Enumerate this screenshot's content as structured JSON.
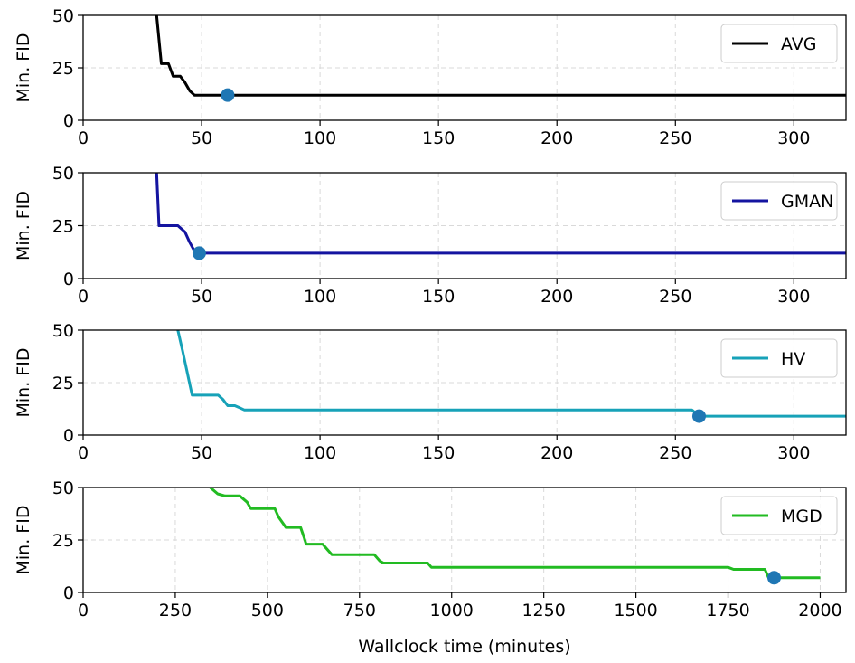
{
  "chart_data": [
    {
      "type": "line",
      "ylabel": "Min. FID",
      "xlim": [
        0,
        322
      ],
      "ylim": [
        0,
        50
      ],
      "xticks": [
        "0",
        "50",
        "100",
        "150",
        "200",
        "250",
        "300"
      ],
      "yticks": [
        "0",
        "25",
        "50"
      ],
      "grid": true,
      "legend_position": "top-right",
      "series": [
        {
          "name": "AVG",
          "color": "#000000",
          "x": [
            31,
            33,
            36,
            38,
            41,
            43,
            45,
            47,
            49,
            55,
            62,
            100,
            200,
            300,
            322
          ],
          "y": [
            50,
            27,
            27,
            21,
            21,
            18,
            14,
            12,
            12,
            12,
            12,
            12,
            12,
            12,
            12
          ]
        }
      ],
      "highlight_point": {
        "x": 61,
        "y": 12,
        "color": "#1f77b4"
      }
    },
    {
      "type": "line",
      "ylabel": "Min. FID",
      "xlim": [
        0,
        322
      ],
      "ylim": [
        0,
        50
      ],
      "xticks": [
        "0",
        "50",
        "100",
        "150",
        "200",
        "250",
        "300"
      ],
      "yticks": [
        "0",
        "25",
        "50"
      ],
      "grid": true,
      "legend_position": "top-right",
      "series": [
        {
          "name": "GMAN",
          "color": "#1414a0",
          "x": [
            31,
            32,
            35,
            40,
            43,
            45,
            47,
            49,
            55,
            100,
            200,
            300,
            322
          ],
          "y": [
            50,
            25,
            25,
            25,
            22,
            17,
            13,
            12,
            12,
            12,
            12,
            12,
            12
          ]
        }
      ],
      "highlight_point": {
        "x": 49,
        "y": 12,
        "color": "#1f77b4"
      }
    },
    {
      "type": "line",
      "ylabel": "Min. FID",
      "xlim": [
        0,
        322
      ],
      "ylim": [
        0,
        50
      ],
      "xticks": [
        "0",
        "50",
        "100",
        "150",
        "200",
        "250",
        "300"
      ],
      "yticks": [
        "0",
        "25",
        "50"
      ],
      "grid": true,
      "legend_position": "top-right",
      "series": [
        {
          "name": "HV",
          "color": "#17a2b8",
          "x": [
            40,
            42,
            46,
            50,
            57,
            59,
            61,
            64,
            66,
            68,
            100,
            200,
            257,
            259,
            261,
            300,
            322
          ],
          "y": [
            50,
            40,
            19,
            19,
            19,
            17,
            14,
            14,
            13,
            12,
            12,
            12,
            12,
            10,
            9,
            9,
            9
          ]
        }
      ],
      "highlight_point": {
        "x": 260,
        "y": 9,
        "color": "#1f77b4"
      }
    },
    {
      "type": "line",
      "xlabel": "Wallclock time (minutes)",
      "ylabel": "Min. FID",
      "xlim": [
        0,
        2070
      ],
      "ylim": [
        0,
        50
      ],
      "xticks": [
        "0",
        "250",
        "500",
        "750",
        "1000",
        "1250",
        "1500",
        "1750",
        "2000"
      ],
      "yticks": [
        "0",
        "25",
        "50"
      ],
      "grid": true,
      "legend_position": "top-right",
      "series": [
        {
          "name": "MGD",
          "color": "#22bb22",
          "x": [
            345,
            365,
            385,
            425,
            445,
            455,
            520,
            530,
            550,
            560,
            590,
            600,
            605,
            650,
            665,
            675,
            790,
            805,
            815,
            935,
            945,
            1000,
            1250,
            1500,
            1750,
            1765,
            1775,
            1850,
            1860,
            1900,
            2000
          ],
          "y": [
            50,
            47,
            46,
            46,
            43,
            40,
            40,
            36,
            31,
            31,
            31,
            26,
            23,
            23,
            20,
            18,
            18,
            15,
            14,
            14,
            12,
            12,
            12,
            12,
            12,
            11,
            11,
            11,
            7,
            7,
            7
          ]
        }
      ],
      "highlight_point": {
        "x": 1875,
        "y": 7,
        "color": "#1f77b4"
      }
    }
  ]
}
